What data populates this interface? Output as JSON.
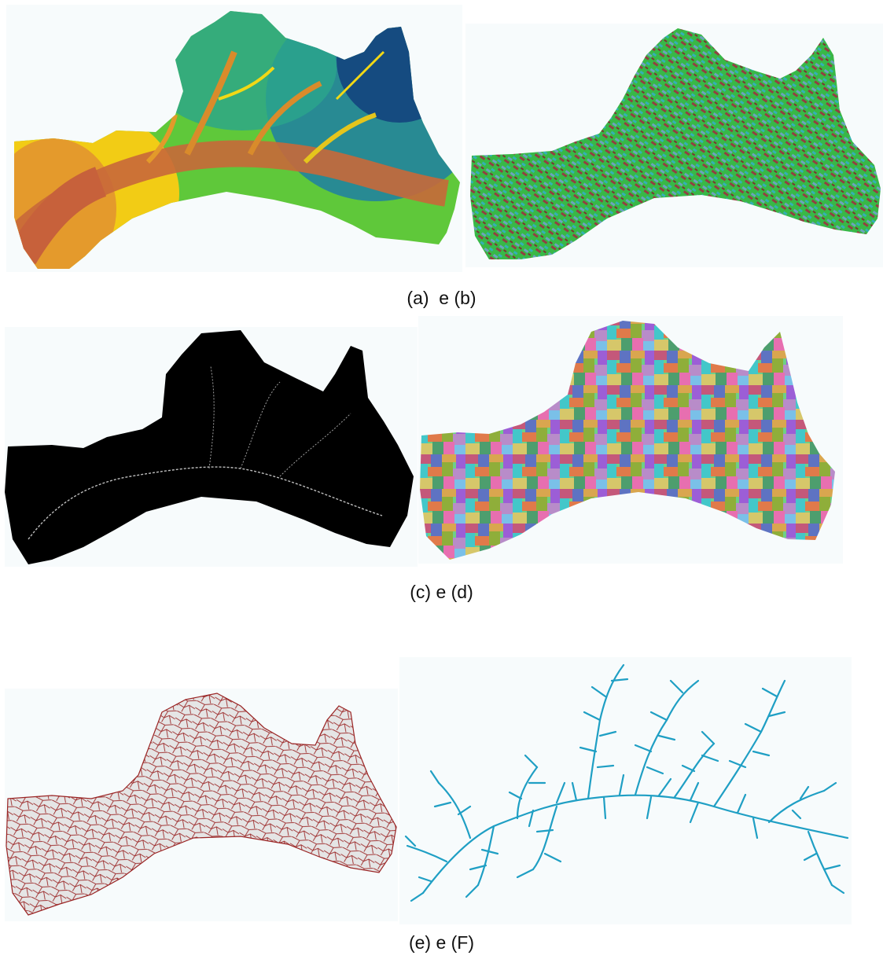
{
  "captions": {
    "row1": "(a)  e (b)",
    "row2": "(c) e (d)",
    "row3": "(e) e (F)"
  },
  "panels": [
    {
      "id": "a",
      "name": "elevation-dem-map",
      "palette": [
        "#c7613b",
        "#e89a2a",
        "#f6d90d",
        "#a8d81f",
        "#2fbf4b",
        "#1aa897",
        "#1d6ea3",
        "#123f7d"
      ]
    },
    {
      "id": "b",
      "name": "flow-direction-map",
      "palette": [
        "#27a33a",
        "#3ccc48",
        "#b0304a",
        "#8b1f2f",
        "#35b6d1",
        "#7ba3d9",
        "#6fae5a",
        "#c86a7a"
      ]
    },
    {
      "id": "c",
      "name": "flow-accumulation-map",
      "palette": [
        "#000000",
        "#d8d8d8"
      ]
    },
    {
      "id": "d",
      "name": "catchment-grid-map",
      "palette": [
        "#c4587a",
        "#6fcf86",
        "#5e73c2",
        "#d9a64f",
        "#9c5ed6",
        "#43c7c9",
        "#e07a4a",
        "#8fae3a",
        "#b88cc9",
        "#d6c76a",
        "#4d9e6e",
        "#e76fb0",
        "#7ac0e8",
        "#a36b4f",
        "#c2d86a"
      ]
    },
    {
      "id": "e",
      "name": "catchment-polygon-map",
      "palette": [
        "#e3e3e3",
        "#9a2424"
      ]
    },
    {
      "id": "f",
      "name": "drainage-line-map",
      "palette": [
        "#1f9fc4"
      ]
    }
  ]
}
